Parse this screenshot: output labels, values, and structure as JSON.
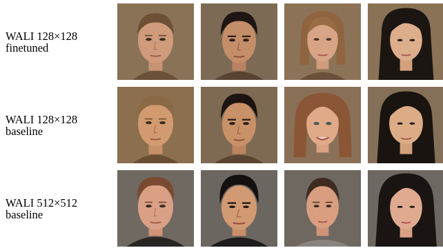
{
  "rows": [
    {
      "label_line1": "WALI 128×128",
      "label_line2": "finetuned"
    },
    {
      "label_line1": "WALI 128×128",
      "label_line2": "baseline"
    },
    {
      "label_line1": "WALI 512×512",
      "label_line2": "baseline"
    }
  ],
  "colors": {
    "bg_warm": "#8a7256",
    "bg_gray": "#6f6961",
    "skin_light": "#d8a383",
    "skin_tan": "#c58d62",
    "skin_warm": "#c89670",
    "hair_blond": "#8a6a44",
    "hair_brown": "#4b3020",
    "hair_black": "#1c1612",
    "hair_auburn": "#8b5636"
  }
}
